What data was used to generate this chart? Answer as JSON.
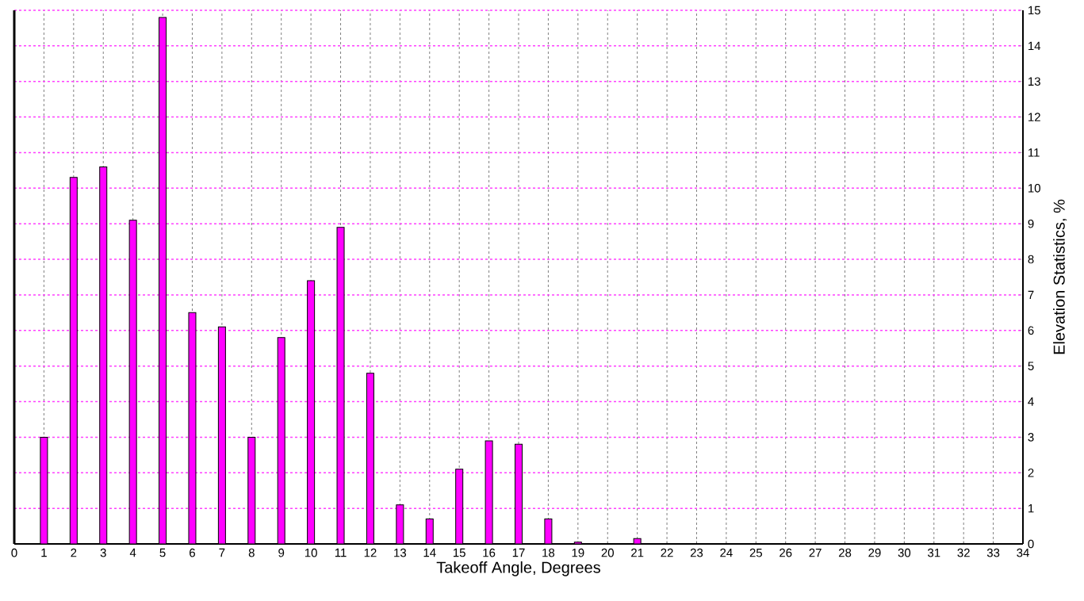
{
  "chart_data": {
    "type": "bar",
    "xlabel": "Takeoff Angle, Degrees",
    "ylabel": "Elevation Statistics, %",
    "x": [
      1,
      2,
      3,
      4,
      5,
      6,
      7,
      8,
      9,
      10,
      11,
      12,
      13,
      14,
      15,
      16,
      17,
      18,
      19,
      21
    ],
    "values": [
      3.0,
      10.3,
      10.6,
      9.1,
      14.8,
      6.5,
      6.1,
      3.0,
      5.8,
      7.4,
      8.9,
      4.8,
      1.1,
      0.7,
      2.1,
      2.9,
      2.8,
      0.7,
      0.05,
      0.15
    ],
    "color": "#ff00ff",
    "xlim": [
      0,
      34
    ],
    "xticks": [
      0,
      1,
      2,
      3,
      4,
      5,
      6,
      7,
      8,
      9,
      10,
      11,
      12,
      13,
      14,
      15,
      16,
      17,
      18,
      19,
      20,
      21,
      22,
      23,
      24,
      25,
      26,
      27,
      28,
      29,
      30,
      31,
      32,
      33,
      34
    ],
    "ylim": [
      0,
      15
    ],
    "yticks": [
      0,
      1,
      2,
      3,
      4,
      5,
      6,
      7,
      8,
      9,
      10,
      11,
      12,
      13,
      14,
      15
    ],
    "grid": true
  }
}
